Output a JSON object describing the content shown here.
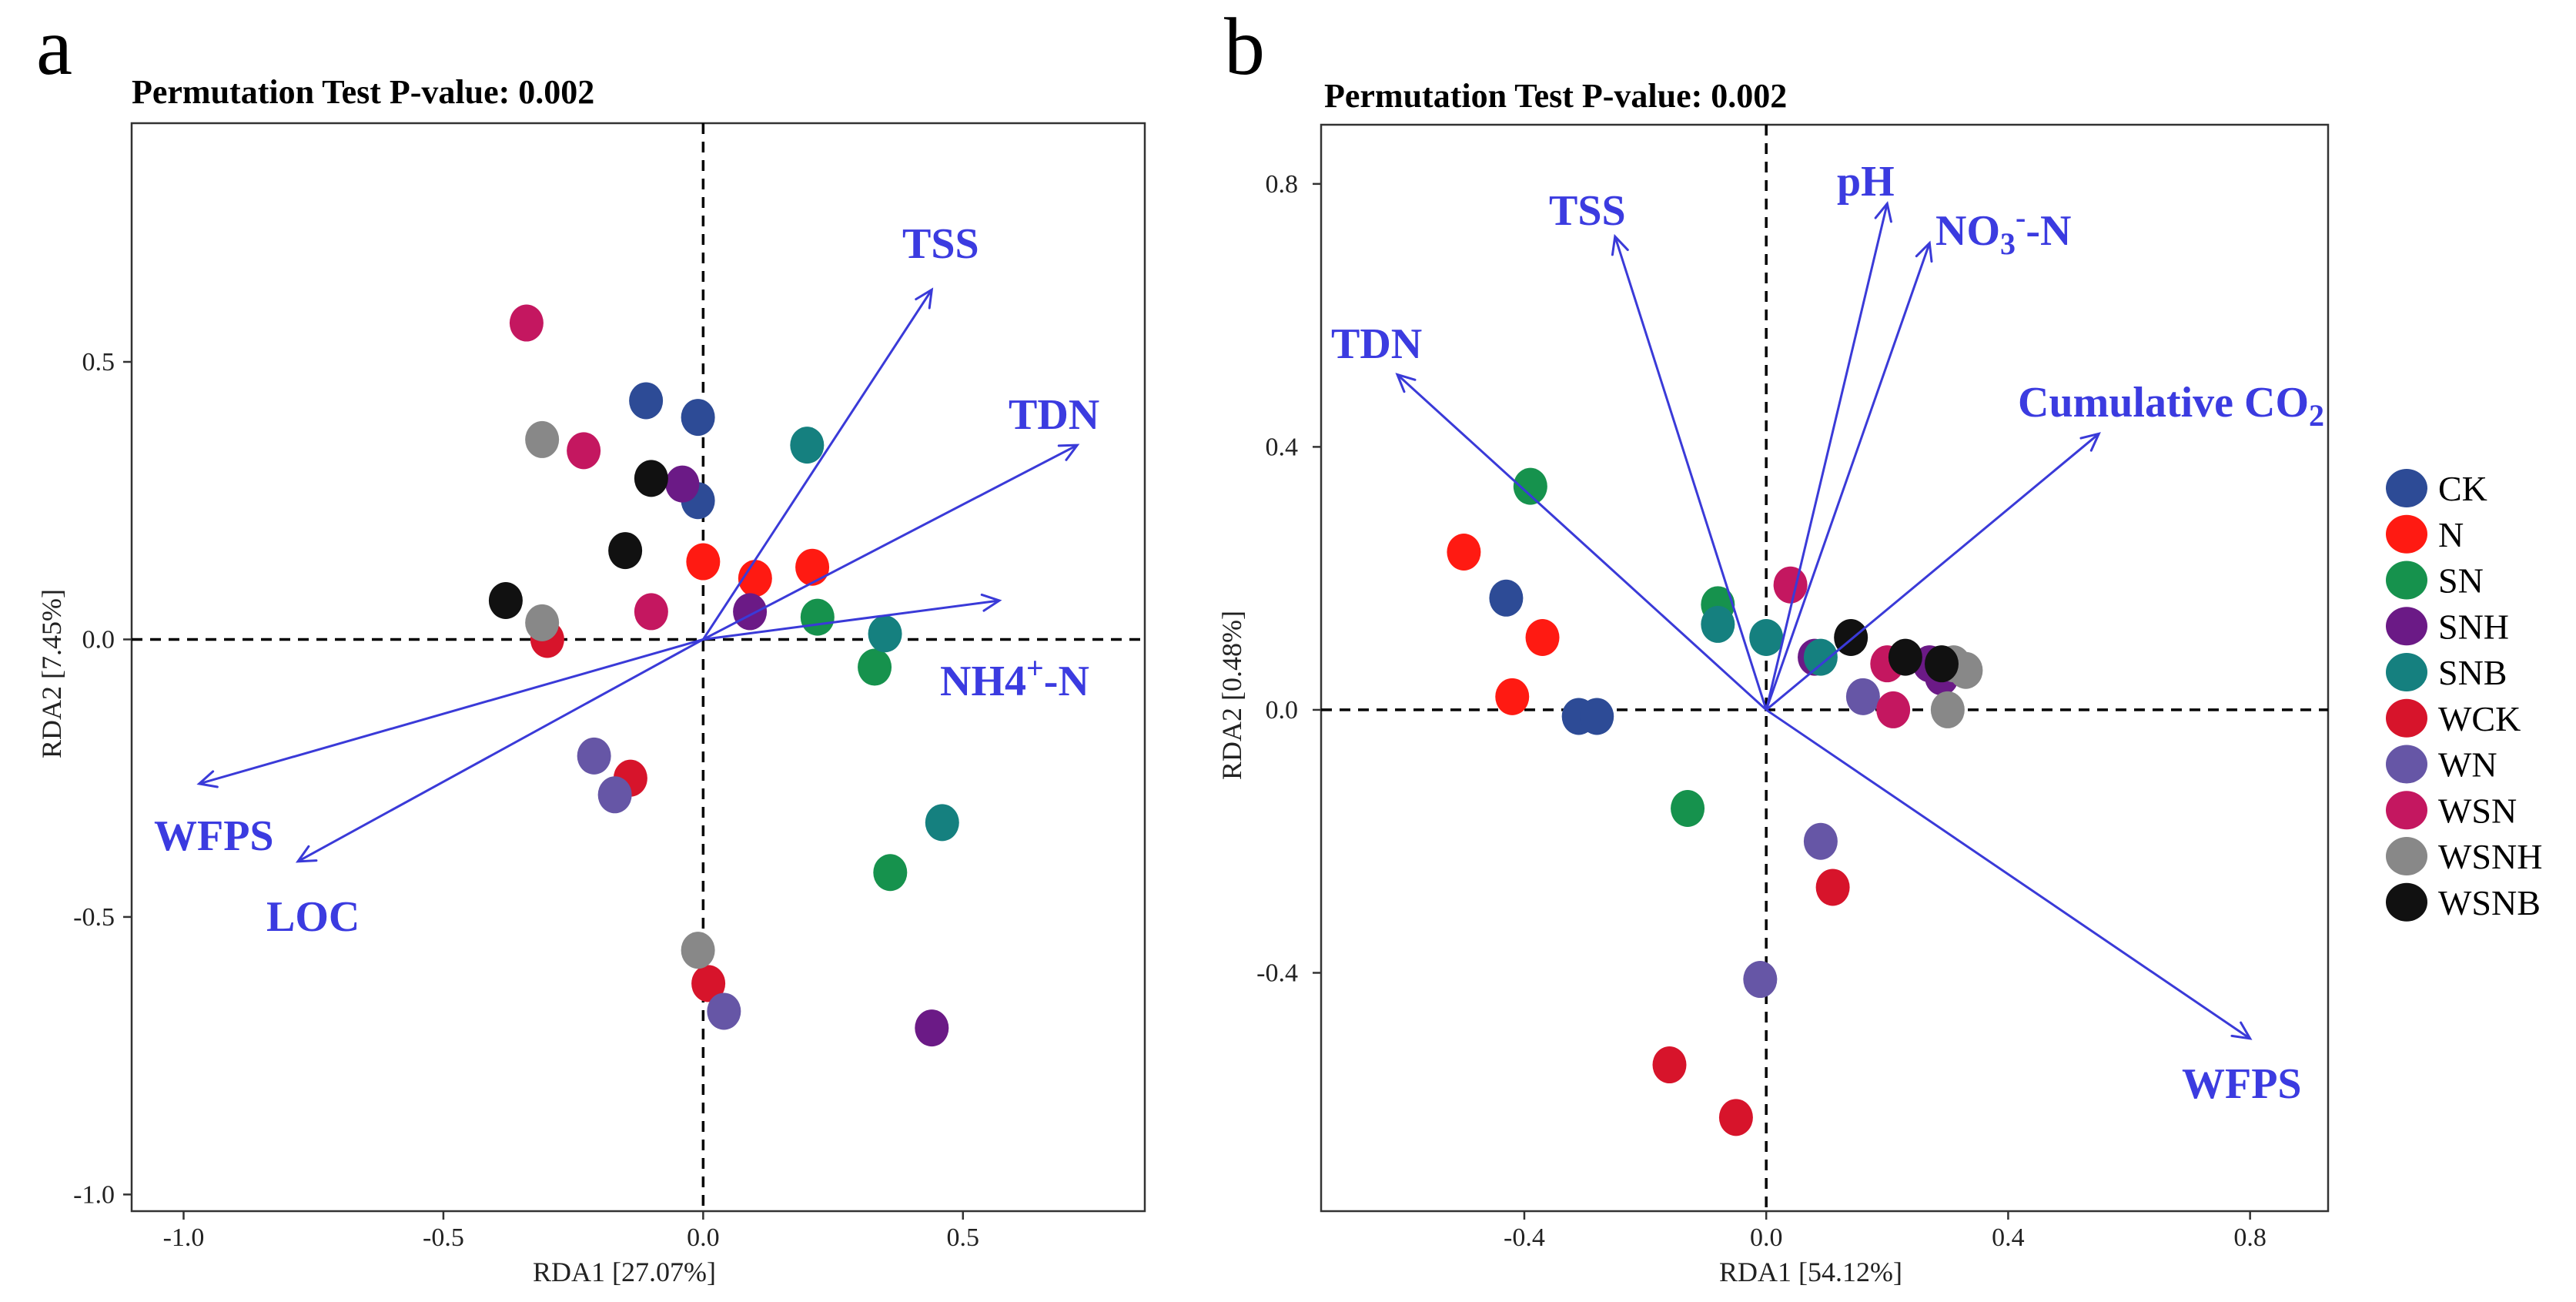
{
  "legend": {
    "items": [
      {
        "name": "CK",
        "color": "#2D4B96"
      },
      {
        "name": "N",
        "color": "#FF1A12"
      },
      {
        "name": "SN",
        "color": "#16924D"
      },
      {
        "name": "SNH",
        "color": "#6B1A86"
      },
      {
        "name": "SNB",
        "color": "#15807F"
      },
      {
        "name": "WCK",
        "color": "#D7142B"
      },
      {
        "name": "WN",
        "color": "#6656A6"
      },
      {
        "name": "WSN",
        "color": "#C41760"
      },
      {
        "name": "WSNH",
        "color": "#888888"
      },
      {
        "name": "WSNB",
        "color": "#111111"
      }
    ]
  },
  "colors": {
    "vector": "#3A3AD8",
    "vector_label": "#3B3BE0",
    "reference_line": "#000000",
    "frame": "#333333"
  },
  "chart_data": [
    {
      "type": "scatter",
      "panel_label": "a",
      "title": "Permutation Test P-value: 0.002",
      "xlabel": "RDA1 [27.07%]",
      "ylabel": "RDA2 [7.45%]",
      "xlim": [
        -1.1,
        0.85
      ],
      "ylim": [
        -1.03,
        0.93
      ],
      "xticks": [
        {
          "value": -1.0,
          "label": "-1.0"
        },
        {
          "value": -0.5,
          "label": "-0.5"
        },
        {
          "value": 0.0,
          "label": "0.0"
        },
        {
          "value": 0.5,
          "label": "0.5"
        }
      ],
      "yticks": [
        {
          "value": 0.5,
          "label": "0.5"
        },
        {
          "value": 0.0,
          "label": "0.0"
        },
        {
          "value": -0.5,
          "label": "-0.5"
        },
        {
          "value": -1.0,
          "label": "-1.0"
        }
      ],
      "reference_lines": {
        "x": 0,
        "y": 0
      },
      "series": [
        {
          "name": "CK",
          "points": [
            [
              -0.11,
              0.43
            ],
            [
              -0.01,
              0.4
            ],
            [
              -0.01,
              0.25
            ]
          ]
        },
        {
          "name": "N",
          "points": [
            [
              0.0,
              0.14
            ],
            [
              0.1,
              0.11
            ],
            [
              0.21,
              0.13
            ]
          ]
        },
        {
          "name": "SN",
          "points": [
            [
              0.22,
              0.04
            ],
            [
              0.33,
              -0.05
            ],
            [
              0.36,
              -0.42
            ]
          ]
        },
        {
          "name": "SNH",
          "points": [
            [
              -0.04,
              0.28
            ],
            [
              0.09,
              0.05
            ],
            [
              0.44,
              -0.7
            ]
          ]
        },
        {
          "name": "SNB",
          "points": [
            [
              0.2,
              0.35
            ],
            [
              0.35,
              0.01
            ],
            [
              0.46,
              -0.33
            ]
          ]
        },
        {
          "name": "WCK",
          "points": [
            [
              -0.3,
              0.0
            ],
            [
              -0.14,
              -0.25
            ],
            [
              0.01,
              -0.62
            ]
          ]
        },
        {
          "name": "WN",
          "points": [
            [
              -0.21,
              -0.21
            ],
            [
              -0.17,
              -0.28
            ],
            [
              0.04,
              -0.67
            ]
          ]
        },
        {
          "name": "WSN",
          "points": [
            [
              -0.34,
              0.57
            ],
            [
              -0.23,
              0.34
            ],
            [
              -0.1,
              0.05
            ]
          ]
        },
        {
          "name": "WSNH",
          "points": [
            [
              -0.31,
              0.36
            ],
            [
              -0.31,
              0.03
            ],
            [
              -0.01,
              -0.56
            ]
          ]
        },
        {
          "name": "WSNB",
          "points": [
            [
              -0.1,
              0.29
            ],
            [
              -0.15,
              0.16
            ],
            [
              -0.38,
              0.07
            ]
          ]
        }
      ],
      "vectors": [
        {
          "label": {
            "base": "TSS"
          },
          "x": 0.44,
          "y": 0.63
        },
        {
          "label": {
            "base": "TDN"
          },
          "x": 0.72,
          "y": 0.35
        },
        {
          "label": {
            "base": "NH4",
            "sup": "+",
            "tail": "-N"
          },
          "x": 0.57,
          "y": 0.07
        },
        {
          "label": {
            "base": "WFPS"
          },
          "x": -0.97,
          "y": -0.26
        },
        {
          "label": {
            "base": "LOC"
          },
          "x": -0.78,
          "y": -0.4
        }
      ]
    },
    {
      "type": "scatter",
      "panel_label": "b",
      "title": "Permutation Test P-value: 0.002",
      "xlabel": "RDA1 [54.12%]",
      "ylabel": "RDA2 [0.48%]",
      "xlim": [
        -0.736,
        0.929
      ],
      "ylim": [
        -0.7625,
        0.89
      ],
      "xticks": [
        {
          "value": -0.4,
          "label": "-0.4"
        },
        {
          "value": 0.0,
          "label": "0.0"
        },
        {
          "value": 0.4,
          "label": "0.4"
        },
        {
          "value": 0.8,
          "label": "0.8"
        }
      ],
      "yticks": [
        {
          "value": 0.8,
          "label": "0.8"
        },
        {
          "value": 0.4,
          "label": "0.4"
        },
        {
          "value": 0.0,
          "label": "0.0"
        },
        {
          "value": -0.4,
          "label": "-0.4"
        }
      ],
      "reference_lines": {
        "x": 0,
        "y": 0
      },
      "series": [
        {
          "name": "CK",
          "points": [
            [
              -0.43,
              0.17
            ],
            [
              -0.31,
              -0.01
            ],
            [
              -0.28,
              -0.01
            ]
          ]
        },
        {
          "name": "N",
          "points": [
            [
              -0.5,
              0.24
            ],
            [
              -0.37,
              0.11
            ],
            [
              -0.42,
              0.02
            ]
          ]
        },
        {
          "name": "SN",
          "points": [
            [
              -0.39,
              0.34
            ],
            [
              -0.08,
              0.16
            ],
            [
              -0.13,
              -0.15
            ]
          ]
        },
        {
          "name": "SNH",
          "points": [
            [
              0.08,
              0.08
            ],
            [
              0.27,
              0.07
            ],
            [
              0.29,
              0.05
            ]
          ]
        },
        {
          "name": "SNB",
          "points": [
            [
              -0.08,
              0.13
            ],
            [
              0.0,
              0.11
            ],
            [
              0.09,
              0.08
            ]
          ]
        },
        {
          "name": "WCK",
          "points": [
            [
              0.11,
              -0.27
            ],
            [
              -0.16,
              -0.54
            ],
            [
              -0.05,
              -0.62
            ]
          ]
        },
        {
          "name": "WN",
          "points": [
            [
              0.09,
              -0.2
            ],
            [
              -0.01,
              -0.41
            ],
            [
              0.16,
              0.02
            ]
          ]
        },
        {
          "name": "WSN",
          "points": [
            [
              0.04,
              0.19
            ],
            [
              0.2,
              0.07
            ],
            [
              0.21,
              0.0
            ]
          ]
        },
        {
          "name": "WSNH",
          "points": [
            [
              0.31,
              0.07
            ],
            [
              0.33,
              0.06
            ],
            [
              0.3,
              0.0
            ]
          ]
        },
        {
          "name": "WSNB",
          "points": [
            [
              0.14,
              0.11
            ],
            [
              0.23,
              0.08
            ],
            [
              0.29,
              0.07
            ]
          ]
        }
      ],
      "vectors": [
        {
          "label": {
            "base": "TSS"
          },
          "x": -0.25,
          "y": 0.72
        },
        {
          "label": {
            "base": "pH"
          },
          "x": 0.2,
          "y": 0.77
        },
        {
          "label": {
            "base": "NO",
            "sub": "3",
            "sup": "-",
            "tail": "-N"
          },
          "x": 0.27,
          "y": 0.71
        },
        {
          "label": {
            "base": "TDN"
          },
          "x": -0.61,
          "y": 0.51
        },
        {
          "label": {
            "base": "Cumulative CO",
            "sub": "2"
          },
          "x": 0.55,
          "y": 0.42
        },
        {
          "label": {
            "base": "WFPS"
          },
          "x": 0.8,
          "y": -0.5
        }
      ]
    }
  ]
}
